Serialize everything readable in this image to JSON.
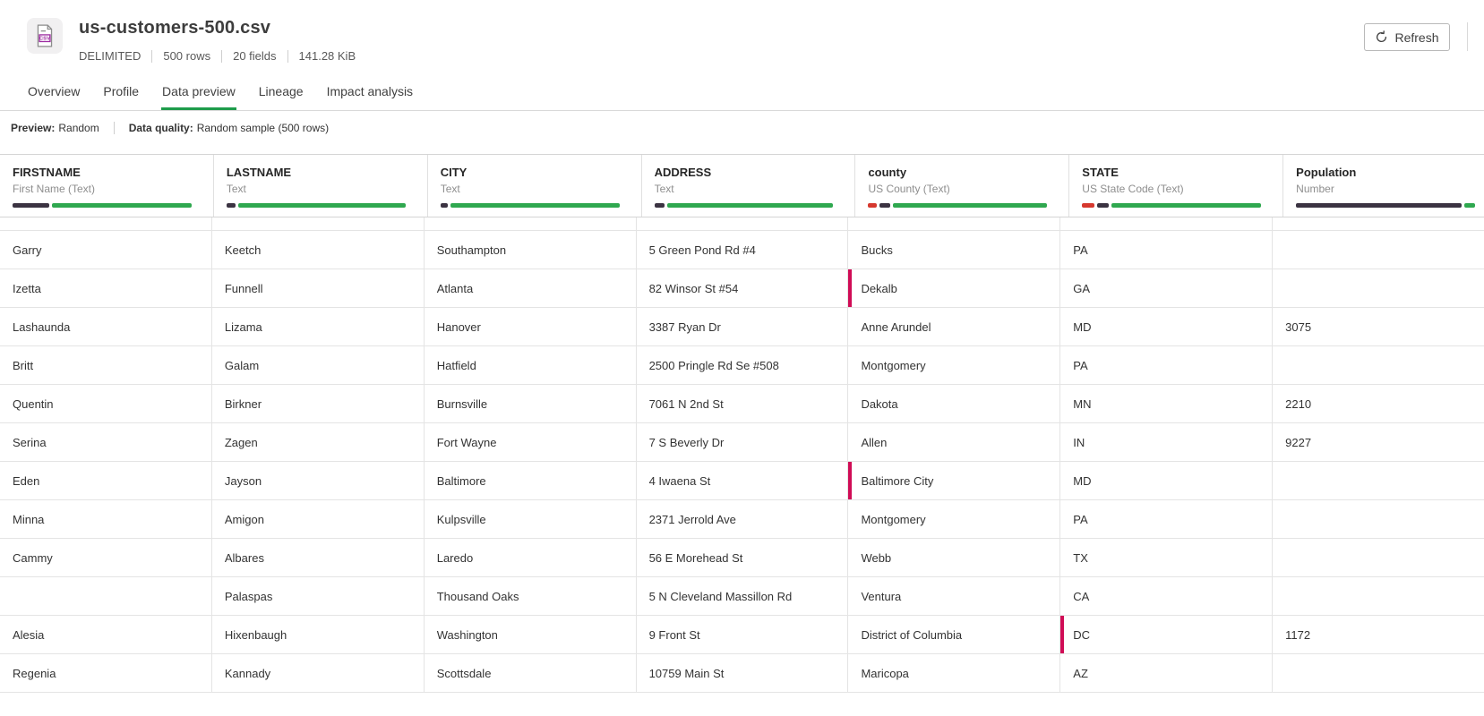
{
  "header": {
    "title": "us-customers-500.csv",
    "meta": [
      "DELIMITED",
      "500 rows",
      "20 fields",
      "141.28 KiB"
    ],
    "refresh_label": "Refresh"
  },
  "tabs": [
    {
      "label": "Overview",
      "active": false
    },
    {
      "label": "Profile",
      "active": false
    },
    {
      "label": "Data preview",
      "active": true
    },
    {
      "label": "Lineage",
      "active": false
    },
    {
      "label": "Impact analysis",
      "active": false
    }
  ],
  "info_bar": {
    "preview_label": "Preview:",
    "preview_value": "Random",
    "quality_label": "Data quality:",
    "quality_value": "Random sample (500 rows)"
  },
  "colors": {
    "valid": "#2fa84f",
    "empty": "#3b3342",
    "invalid": "#d6382e",
    "marker": "#d00c56",
    "active_tab": "#1e9c4b"
  },
  "table": {
    "columns": [
      {
        "name": "FIRSTNAME",
        "type": "First Name (Text)",
        "bar": {
          "invalid": 0,
          "empty": 21,
          "valid": 79
        }
      },
      {
        "name": "LASTNAME",
        "type": "Text",
        "bar": {
          "invalid": 0,
          "empty": 5,
          "valid": 95
        }
      },
      {
        "name": "CITY",
        "type": "Text",
        "bar": {
          "invalid": 0,
          "empty": 4,
          "valid": 96
        }
      },
      {
        "name": "ADDRESS",
        "type": "Text",
        "bar": {
          "invalid": 0,
          "empty": 6,
          "valid": 94
        }
      },
      {
        "name": "county",
        "type": "US County (Text)",
        "bar": {
          "invalid": 5,
          "empty": 6,
          "valid": 89
        }
      },
      {
        "name": "STATE",
        "type": "US State Code (Text)",
        "bar": {
          "invalid": 7,
          "empty": 7,
          "valid": 86
        }
      },
      {
        "name": "Population",
        "type": "Number",
        "bar": {
          "invalid": 0,
          "empty": 94,
          "valid": 6
        }
      }
    ],
    "rows": [
      {
        "cells": [
          "Garry",
          "Keetch",
          "Southampton",
          "5 Green Pond Rd #4",
          "Bucks",
          "PA",
          ""
        ],
        "flags": []
      },
      {
        "cells": [
          "Izetta",
          "Funnell",
          "Atlanta",
          "82 Winsor St #54",
          "Dekalb",
          "GA",
          ""
        ],
        "flags": [
          4
        ]
      },
      {
        "cells": [
          "Lashaunda",
          "Lizama",
          "Hanover",
          "3387 Ryan Dr",
          "Anne Arundel",
          "MD",
          "3075"
        ],
        "flags": []
      },
      {
        "cells": [
          "Britt",
          "Galam",
          "Hatfield",
          "2500 Pringle Rd Se #508",
          "Montgomery",
          "PA",
          ""
        ],
        "flags": []
      },
      {
        "cells": [
          "Quentin",
          "Birkner",
          "Burnsville",
          "7061 N 2nd St",
          "Dakota",
          "MN",
          "2210"
        ],
        "flags": []
      },
      {
        "cells": [
          "Serina",
          "Zagen",
          "Fort Wayne",
          "7 S Beverly Dr",
          "Allen",
          "IN",
          "9227"
        ],
        "flags": []
      },
      {
        "cells": [
          "Eden",
          "Jayson",
          "Baltimore",
          "4 Iwaena St",
          "Baltimore City",
          "MD",
          ""
        ],
        "flags": [
          4
        ]
      },
      {
        "cells": [
          "Minna",
          "Amigon",
          "Kulpsville",
          "2371 Jerrold Ave",
          "Montgomery",
          "PA",
          ""
        ],
        "flags": []
      },
      {
        "cells": [
          "Cammy",
          "Albares",
          "Laredo",
          "56 E Morehead St",
          "Webb",
          "TX",
          ""
        ],
        "flags": []
      },
      {
        "cells": [
          "",
          "Palaspas",
          "Thousand Oaks",
          "5 N Cleveland Massillon Rd",
          "Ventura",
          "CA",
          ""
        ],
        "flags": []
      },
      {
        "cells": [
          "Alesia",
          "Hixenbaugh",
          "Washington",
          "9 Front St",
          "District of Columbia",
          "DC",
          "1172"
        ],
        "flags": [
          5
        ]
      },
      {
        "cells": [
          "Regenia",
          "Kannady",
          "Scottsdale",
          "10759 Main St",
          "Maricopa",
          "AZ",
          ""
        ],
        "flags": []
      }
    ]
  }
}
